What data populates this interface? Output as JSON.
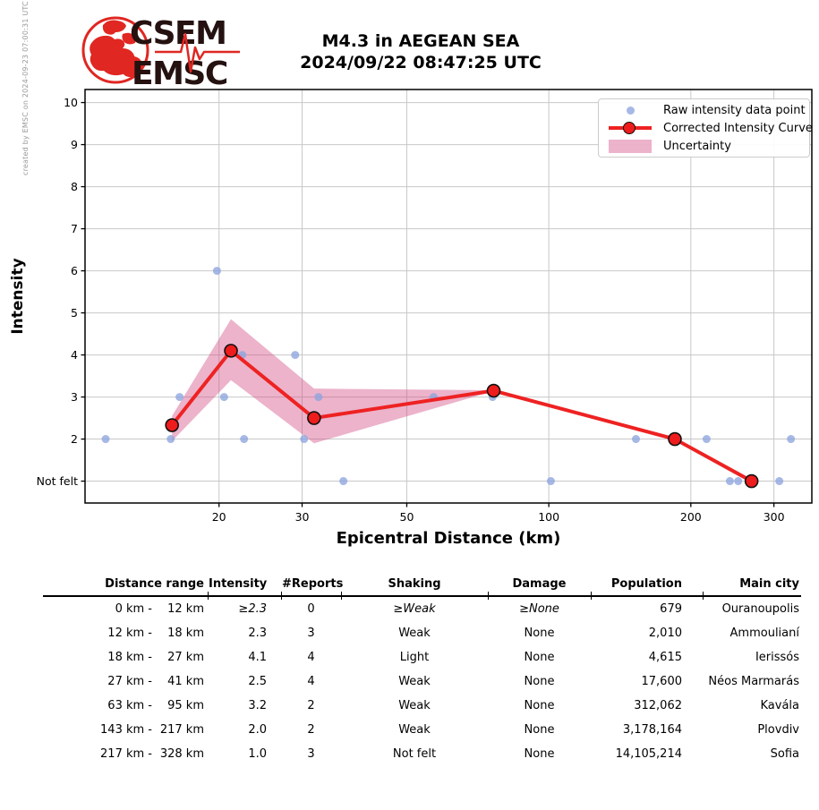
{
  "meta": {
    "created_by": "created by EMSC on 2024-09-23 07:00:31 UTC"
  },
  "logo": {
    "top": "CSEM",
    "bottom": "EMSC"
  },
  "title": {
    "line1": "M4.3 in AEGEAN SEA",
    "line2": "2024/09/22 08:47:25 UTC"
  },
  "chart_data": {
    "type": "line",
    "title": "M4.3 in AEGEAN SEA 2024/09/22 08:47:25 UTC",
    "xlabel": "Epicentral Distance (km)",
    "ylabel": "Intensity",
    "x_scale": "log",
    "grid": true,
    "legend_position": "upper right",
    "x_ticks": [
      20,
      30,
      50,
      100,
      200,
      300
    ],
    "x_range": [
      10.4,
      361
    ],
    "y_range": [
      0.48,
      10.31
    ],
    "y_ticks": [
      {
        "value": 1,
        "label": "Not felt"
      },
      {
        "value": 2,
        "label": "2"
      },
      {
        "value": 3,
        "label": "3"
      },
      {
        "value": 4,
        "label": "4"
      },
      {
        "value": 5,
        "label": "5"
      },
      {
        "value": 6,
        "label": "6"
      },
      {
        "value": 7,
        "label": "7"
      },
      {
        "value": 8,
        "label": "8"
      },
      {
        "value": 9,
        "label": "9"
      },
      {
        "value": 10,
        "label": "10"
      }
    ],
    "legend": [
      {
        "label": "Raw intensity data point",
        "type": "point"
      },
      {
        "label": "Corrected Intensity Curve",
        "type": "line-marker"
      },
      {
        "label": "Uncertainty",
        "type": "band"
      }
    ],
    "raw_points": [
      [
        11.5,
        2
      ],
      [
        15.8,
        2
      ],
      [
        16.5,
        3
      ],
      [
        19.8,
        6
      ],
      [
        20.5,
        3
      ],
      [
        22.4,
        4
      ],
      [
        22.6,
        2
      ],
      [
        29,
        4
      ],
      [
        30.3,
        2
      ],
      [
        32.5,
        3
      ],
      [
        36.7,
        1
      ],
      [
        57,
        3
      ],
      [
        76,
        3
      ],
      [
        101,
        1
      ],
      [
        153,
        2
      ],
      [
        216,
        2
      ],
      [
        242,
        1
      ],
      [
        252,
        1
      ],
      [
        308,
        1
      ],
      [
        326,
        2
      ]
    ],
    "corrected_curve": [
      [
        15.9,
        2.33
      ],
      [
        21.2,
        4.1
      ],
      [
        31.8,
        2.5
      ],
      [
        76.4,
        3.15
      ],
      [
        185,
        2.0
      ],
      [
        269,
        1.0
      ]
    ],
    "uncertainty_band": {
      "x": [
        15.9,
        21.2,
        31.8,
        76.4
      ],
      "upper": [
        2.55,
        4.85,
        3.2,
        3.16
      ],
      "lower": [
        1.95,
        3.4,
        1.9,
        3.14
      ]
    },
    "colors": {
      "raw_point": "rgba(141,164,222,0.78)",
      "curve": "#ee2222",
      "marker_fill": "#ee1c1c",
      "marker_edge": "#111111",
      "band": "rgba(209,74,130,0.42)",
      "grid": "#c8c8c8",
      "axis": "#000000",
      "logo_red": "#e02722",
      "logo_text": "#241110"
    }
  },
  "table": {
    "headers": [
      "Distance range",
      "Intensity",
      "#Reports",
      "Shaking",
      "Damage",
      "Population",
      "Main city"
    ],
    "rows": [
      {
        "from": "0 km -",
        "to": "12 km",
        "intensity": "≥2.3",
        "reports": "0",
        "shaking": "≥Weak",
        "damage": "≥None",
        "population": "679",
        "city": "Ouranoupolis",
        "estimated": true
      },
      {
        "from": "12 km -",
        "to": "18 km",
        "intensity": "2.3",
        "reports": "3",
        "shaking": "Weak",
        "damage": "None",
        "population": "2,010",
        "city": "Ammoulianí",
        "estimated": false
      },
      {
        "from": "18 km -",
        "to": "27 km",
        "intensity": "4.1",
        "reports": "4",
        "shaking": "Light",
        "damage": "None",
        "population": "4,615",
        "city": "Ierissós",
        "estimated": false
      },
      {
        "from": "27 km -",
        "to": "41 km",
        "intensity": "2.5",
        "reports": "4",
        "shaking": "Weak",
        "damage": "None",
        "population": "17,600",
        "city": "Néos Marmarás",
        "estimated": false
      },
      {
        "from": "63 km -",
        "to": "95 km",
        "intensity": "3.2",
        "reports": "2",
        "shaking": "Weak",
        "damage": "None",
        "population": "312,062",
        "city": "Kavála",
        "estimated": false
      },
      {
        "from": "143 km -",
        "to": "217 km",
        "intensity": "2.0",
        "reports": "2",
        "shaking": "Weak",
        "damage": "None",
        "population": "3,178,164",
        "city": "Plovdiv",
        "estimated": false
      },
      {
        "from": "217 km -",
        "to": "328 km",
        "intensity": "1.0",
        "reports": "3",
        "shaking": "Not felt",
        "damage": "None",
        "population": "14,105,214",
        "city": "Sofia",
        "estimated": false
      }
    ]
  }
}
